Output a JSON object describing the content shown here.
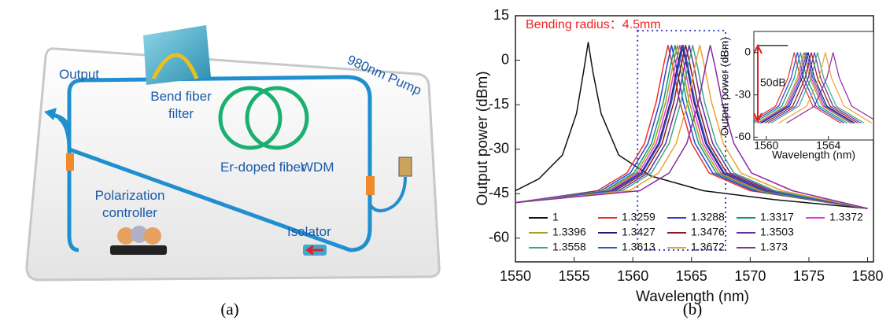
{
  "figure": {
    "panel_a": {
      "caption": "(a)",
      "output": "Output",
      "filter": [
        "Bend fiber",
        "filter"
      ],
      "pump": "980nm Pump",
      "fiber": "Er-doped fiber",
      "wdm": "WDM",
      "controller": [
        "Polarization",
        "controller"
      ],
      "isolator": "Isolator"
    },
    "panel_b": {
      "caption": "(b)"
    }
  },
  "chart_data": {
    "type": "line",
    "annotation": "Bending radius：4.5mm",
    "x_label": "Wavelength (nm)",
    "y_label": "Output power (dBm)",
    "xlim": [
      1550,
      1580.5
    ],
    "ylim": [
      -68,
      15
    ],
    "xticks": [
      1550,
      1555,
      1560,
      1565,
      1570,
      1575,
      1580
    ],
    "yticks": [
      -60,
      -45,
      -30,
      -15,
      0,
      15
    ],
    "highlight_box": {
      "xlim": [
        1560.4,
        1567.9
      ],
      "ylim": [
        -64,
        10
      ],
      "color": "#3344cc"
    },
    "series": [
      {
        "name": "1",
        "color": "#111111",
        "x": [
          1550,
          1552,
          1554,
          1555.2,
          1555.8,
          1556.2,
          1556.6,
          1557.3,
          1558.8,
          1561.5,
          1566,
          1572,
          1580
        ],
        "values": [
          -44,
          -40,
          -32,
          -18,
          -4,
          6,
          -4,
          -18,
          -32,
          -39,
          -44,
          -47,
          -50
        ]
      },
      {
        "name": "1.3259",
        "color": "#e8302a",
        "x": [
          1550,
          1557,
          1559.5,
          1561,
          1562,
          1562.6,
          1563,
          1563.4,
          1564,
          1565,
          1566.5,
          1570,
          1580
        ],
        "values": [
          -48,
          -44,
          -38,
          -28,
          -14,
          -2,
          5,
          -2,
          -14,
          -28,
          -38,
          -44,
          -50
        ]
      },
      {
        "name": "1.3288",
        "color": "#2a3fd6",
        "x": [
          1550,
          1557.3,
          1559.8,
          1561.3,
          1562.3,
          1562.9,
          1563.3,
          1563.7,
          1564.3,
          1565.3,
          1566.8,
          1570.3,
          1580
        ],
        "values": [
          -48,
          -44,
          -38,
          -28,
          -14,
          -2,
          5,
          -2,
          -14,
          -28,
          -38,
          -44,
          -50
        ]
      },
      {
        "name": "1.3317",
        "color": "#0e9a7a",
        "x": [
          1550,
          1557.6,
          1560.1,
          1561.6,
          1562.6,
          1563.2,
          1563.6,
          1564,
          1564.6,
          1565.6,
          1567.1,
          1570.6,
          1580
        ],
        "values": [
          -48,
          -44,
          -38,
          -28,
          -14,
          -2,
          5,
          -2,
          -14,
          -28,
          -38,
          -44,
          -50
        ]
      },
      {
        "name": "1.3372",
        "color": "#e03ad0",
        "x": [
          1550,
          1558,
          1560.5,
          1562,
          1563,
          1563.6,
          1564,
          1564.4,
          1565,
          1566,
          1567.5,
          1571,
          1580
        ],
        "values": [
          -48,
          -44,
          -38,
          -28,
          -14,
          -2,
          5,
          -2,
          -14,
          -28,
          -38,
          -44,
          -50
        ]
      },
      {
        "name": "1.3396",
        "color": "#a8a020",
        "x": [
          1550,
          1557.8,
          1560.3,
          1561.8,
          1562.8,
          1563.4,
          1563.8,
          1564.2,
          1564.8,
          1565.8,
          1567.3,
          1570.8,
          1580
        ],
        "values": [
          -48,
          -44,
          -38,
          -28,
          -14,
          -2,
          5,
          -2,
          -14,
          -28,
          -38,
          -44,
          -50
        ]
      },
      {
        "name": "1.3427",
        "color": "#1a1a7a",
        "x": [
          1550,
          1558.2,
          1560.7,
          1562.2,
          1563.2,
          1563.8,
          1564.2,
          1564.6,
          1565.2,
          1566.2,
          1567.7,
          1571.2,
          1580
        ],
        "values": [
          -48,
          -44,
          -38,
          -28,
          -14,
          -2,
          5,
          -2,
          -14,
          -28,
          -38,
          -44,
          -50
        ]
      },
      {
        "name": "1.3476",
        "color": "#8b1a1a",
        "x": [
          1550,
          1558.5,
          1561,
          1562.5,
          1563.5,
          1564.1,
          1564.5,
          1564.9,
          1565.5,
          1566.5,
          1568,
          1571.5,
          1580
        ],
        "values": [
          -48,
          -44,
          -38,
          -28,
          -14,
          -2,
          5,
          -2,
          -14,
          -28,
          -38,
          -44,
          -50
        ]
      },
      {
        "name": "1.3503",
        "color": "#6a2a9a",
        "x": [
          1550,
          1558.8,
          1561.3,
          1562.8,
          1563.8,
          1564.4,
          1564.8,
          1565.2,
          1565.8,
          1566.8,
          1568.3,
          1571.8,
          1580
        ],
        "values": [
          -48,
          -44,
          -38,
          -28,
          -14,
          -2,
          5,
          -2,
          -14,
          -28,
          -38,
          -44,
          -50
        ]
      },
      {
        "name": "1.3558",
        "color": "#3aa886",
        "x": [
          1550,
          1559.1,
          1561.6,
          1563.1,
          1564.1,
          1564.7,
          1565.1,
          1565.5,
          1566.1,
          1567.1,
          1568.6,
          1572.1,
          1580
        ],
        "values": [
          -48,
          -44,
          -38,
          -28,
          -14,
          -2,
          5,
          -2,
          -14,
          -28,
          -38,
          -44,
          -50
        ]
      },
      {
        "name": "1.3613",
        "color": "#3355cc",
        "x": [
          1550,
          1558.3,
          1560.8,
          1562.3,
          1563.3,
          1563.9,
          1564.3,
          1564.7,
          1565.3,
          1566.3,
          1567.8,
          1571.3,
          1580
        ],
        "values": [
          -48,
          -44,
          -38,
          -28,
          -14,
          -2,
          5,
          -2,
          -14,
          -28,
          -38,
          -44,
          -50
        ]
      },
      {
        "name": "1.3672",
        "color": "#f0a030",
        "x": [
          1550,
          1559.7,
          1562.2,
          1563.7,
          1564.7,
          1565.3,
          1565.7,
          1566.1,
          1566.7,
          1567.7,
          1569.2,
          1572.7,
          1580
        ],
        "values": [
          -48,
          -44,
          -38,
          -28,
          -14,
          -2,
          5,
          -2,
          -14,
          -28,
          -38,
          -44,
          -50
        ]
      },
      {
        "name": "1.373",
        "color": "#8a2aa0",
        "x": [
          1550,
          1560.6,
          1563.1,
          1564.6,
          1565.6,
          1566.2,
          1566.6,
          1567,
          1567.6,
          1568.6,
          1570.1,
          1573.6,
          1580
        ],
        "values": [
          -48,
          -44,
          -38,
          -28,
          -14,
          -2,
          5,
          -2,
          -14,
          -28,
          -38,
          -44,
          -50
        ]
      }
    ],
    "inset": {
      "x_label": "Wavelength (nm)",
      "y_label": "Output power (dBm)",
      "annotation": "50dB",
      "xlim": [
        1559.2,
        1566.9
      ],
      "ylim": [
        -62,
        15
      ],
      "xticks": [
        1560,
        1564
      ],
      "yticks": [
        -60,
        -30,
        0
      ],
      "series": [
        {
          "color": "#111111",
          "x": [
            1559.4,
            1561.4
          ],
          "values": [
            5,
            5
          ]
        },
        {
          "color": "#e8302a",
          "x": [
            1558.8,
            1560.6,
            1561.4,
            1561.8,
            1562.2,
            1563,
            1564.8
          ],
          "values": [
            -50,
            -38,
            -18,
            0,
            -18,
            -38,
            -50
          ]
        },
        {
          "color": "#2a3fd6",
          "x": [
            1559,
            1560.8,
            1561.6,
            1562,
            1562.4,
            1563.2,
            1565
          ],
          "values": [
            -50,
            -38,
            -18,
            0,
            -18,
            -38,
            -50
          ]
        },
        {
          "color": "#0e9a7a",
          "x": [
            1559.2,
            1561,
            1561.8,
            1562.2,
            1562.6,
            1563.4,
            1565.2
          ],
          "values": [
            -50,
            -38,
            -18,
            0,
            -18,
            -38,
            -50
          ]
        },
        {
          "color": "#e03ad0",
          "x": [
            1559.5,
            1561.3,
            1562.1,
            1562.5,
            1562.9,
            1563.7,
            1565.5
          ],
          "values": [
            -50,
            -38,
            -18,
            0,
            -18,
            -38,
            -50
          ]
        },
        {
          "color": "#a8a020",
          "x": [
            1559.4,
            1561.2,
            1562,
            1562.4,
            1562.8,
            1563.6,
            1565.4
          ],
          "values": [
            -50,
            -38,
            -18,
            0,
            -18,
            -38,
            -50
          ]
        },
        {
          "color": "#1a1a7a",
          "x": [
            1559.7,
            1561.5,
            1562.3,
            1562.7,
            1563.1,
            1563.9,
            1565.7
          ],
          "values": [
            -50,
            -38,
            -18,
            0,
            -18,
            -38,
            -50
          ]
        },
        {
          "color": "#8b1a1a",
          "x": [
            1559.9,
            1561.7,
            1562.5,
            1562.9,
            1563.3,
            1564.1,
            1565.9
          ],
          "values": [
            -50,
            -38,
            -18,
            0,
            -18,
            -38,
            -50
          ]
        },
        {
          "color": "#6a2a9a",
          "x": [
            1560.1,
            1561.9,
            1562.7,
            1563.1,
            1563.5,
            1564.3,
            1566.1
          ],
          "values": [
            -50,
            -38,
            -18,
            0,
            -18,
            -38,
            -50
          ]
        },
        {
          "color": "#3aa886",
          "x": [
            1560.3,
            1562.1,
            1562.9,
            1563.3,
            1563.7,
            1564.5,
            1566.3
          ],
          "values": [
            -50,
            -38,
            -18,
            0,
            -18,
            -38,
            -50
          ]
        },
        {
          "color": "#3355cc",
          "x": [
            1559.6,
            1561.4,
            1562.2,
            1562.6,
            1563,
            1563.8,
            1565.6
          ],
          "values": [
            -50,
            -38,
            -18,
            0,
            -18,
            -38,
            -50
          ]
        },
        {
          "color": "#f0a030",
          "x": [
            1560.8,
            1562.6,
            1563.4,
            1563.8,
            1564.2,
            1565,
            1566.8
          ],
          "values": [
            -50,
            -38,
            -18,
            0,
            -18,
            -38,
            -50
          ]
        },
        {
          "color": "#8a2aa0",
          "x": [
            1561.3,
            1563.1,
            1563.9,
            1564.3,
            1564.7,
            1565.5,
            1567.3
          ],
          "values": [
            -50,
            -38,
            -18,
            0,
            -18,
            -38,
            -50
          ]
        }
      ]
    }
  }
}
